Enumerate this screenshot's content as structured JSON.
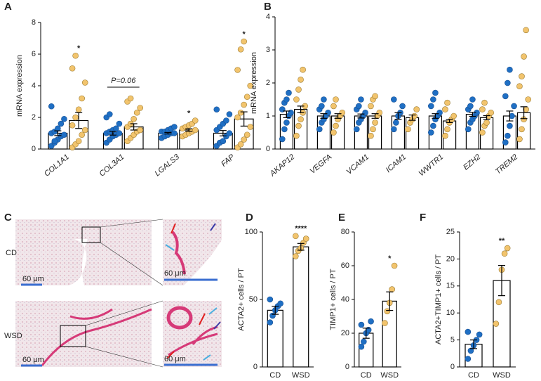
{
  "chart_data": [
    {
      "type": "bar",
      "panel": "A",
      "ylabel": "mRNA expression",
      "ylim": [
        0,
        8
      ],
      "yticks": [
        0,
        2,
        4,
        6,
        8
      ],
      "categories": [
        "COL1A1",
        "COL3A1",
        "LGALS3",
        "FAP"
      ],
      "series": [
        {
          "color": "#1f6fc4",
          "values": [
            1.0,
            1.0,
            1.0,
            1.0
          ],
          "errors": [
            0.15,
            0.12,
            0.05,
            0.17
          ],
          "points": [
            [
              0.2,
              0.4,
              0.6,
              0.8,
              0.9,
              1.0,
              1.1,
              1.3,
              1.6,
              1.9,
              2.7,
              0.5
            ],
            [
              0.4,
              0.6,
              0.8,
              0.9,
              1.0,
              1.0,
              1.1,
              1.2,
              1.3,
              1.6,
              2.0,
              2.2
            ],
            [
              0.7,
              0.8,
              0.9,
              1.0,
              1.0,
              1.1,
              1.1,
              1.2,
              1.3,
              1.4
            ],
            [
              0.2,
              0.4,
              0.5,
              0.8,
              1.0,
              1.2,
              1.4,
              1.6,
              1.8,
              2.2,
              2.5
            ]
          ]
        },
        {
          "color": "#f2c46d",
          "values": [
            1.8,
            1.4,
            1.2,
            1.9
          ],
          "errors": [
            0.5,
            0.2,
            0.08,
            0.45
          ],
          "points": [
            [
              0.1,
              0.3,
              0.5,
              0.9,
              1.2,
              1.5,
              2.0,
              2.5,
              3.2,
              4.2,
              5.1,
              5.9
            ],
            [
              0.5,
              0.7,
              0.9,
              1.1,
              1.2,
              1.4,
              1.6,
              1.9,
              2.3,
              2.6,
              3.0,
              3.2
            ],
            [
              0.8,
              0.9,
              1.0,
              1.1,
              1.2,
              1.3,
              1.4,
              1.5,
              1.6,
              1.8
            ],
            [
              0.1,
              0.3,
              0.6,
              0.9,
              1.4,
              2.0,
              2.3,
              2.8,
              3.3,
              4.0,
              5.0,
              6.3,
              6.8
            ]
          ]
        }
      ],
      "significance": [
        "*",
        "P=0.06",
        "*",
        "*"
      ]
    },
    {
      "type": "bar",
      "panel": "B",
      "ylabel": "mRNA expression",
      "ylim": [
        0,
        4
      ],
      "yticks": [
        0,
        1,
        2,
        3,
        4
      ],
      "categories": [
        "AKAP12",
        "VEGFA",
        "VCAM1",
        "ICAM1",
        "WWTR1",
        "EZH2",
        "TREM2"
      ],
      "series": [
        {
          "color": "#1f6fc4",
          "values": [
            1.05,
            1.0,
            1.0,
            1.0,
            1.0,
            1.05,
            1.0
          ],
          "errors": [
            0.1,
            0.07,
            0.06,
            0.1,
            0.07,
            0.06,
            0.15
          ],
          "points": [
            [
              0.3,
              0.6,
              0.8,
              1.0,
              1.1,
              1.2,
              1.4,
              1.5,
              1.7
            ],
            [
              0.6,
              0.8,
              0.9,
              1.0,
              1.1,
              1.2,
              1.3,
              1.5
            ],
            [
              0.6,
              0.8,
              0.9,
              1.0,
              1.1,
              1.2,
              1.3,
              1.5
            ],
            [
              0.6,
              0.8,
              1.0,
              1.1,
              1.3,
              1.5
            ],
            [
              0.5,
              0.7,
              0.9,
              1.0,
              1.1,
              1.3,
              1.5,
              1.7
            ],
            [
              0.6,
              0.8,
              0.9,
              1.0,
              1.1,
              1.2,
              1.3,
              1.5
            ],
            [
              0.2,
              0.4,
              0.7,
              1.0,
              1.3,
              1.6,
              2.0,
              2.4
            ]
          ]
        },
        {
          "color": "#f2c46d",
          "values": [
            1.2,
            1.0,
            1.0,
            0.95,
            0.85,
            0.95,
            1.1
          ],
          "errors": [
            0.1,
            0.07,
            0.07,
            0.08,
            0.05,
            0.06,
            0.18
          ],
          "points": [
            [
              0.4,
              0.7,
              0.9,
              1.1,
              1.3,
              1.5,
              1.8,
              2.1,
              2.4
            ],
            [
              0.5,
              0.7,
              0.9,
              1.0,
              1.1,
              1.3,
              1.5
            ],
            [
              0.4,
              0.6,
              0.8,
              1.0,
              1.1,
              1.3,
              1.5,
              1.6
            ],
            [
              0.6,
              0.8,
              0.9,
              1.0,
              1.2
            ],
            [
              0.4,
              0.6,
              0.8,
              0.9,
              1.0,
              1.2,
              1.4
            ],
            [
              0.5,
              0.7,
              0.8,
              1.0,
              1.1,
              1.2,
              1.4
            ],
            [
              0.3,
              0.6,
              0.9,
              1.2,
              1.5,
              1.9,
              2.2,
              2.8,
              3.6
            ]
          ]
        }
      ]
    },
    {
      "type": "bar",
      "panel": "D",
      "ylabel": "ACTA2+ cells / PT",
      "ylim": [
        0,
        100
      ],
      "yticks": [
        0,
        50,
        100
      ],
      "categories": [
        "CD",
        "WSD"
      ],
      "values": [
        42,
        89
      ],
      "errors": [
        3,
        2.5
      ],
      "colors": [
        "#1f6fc4",
        "#f2c46d"
      ],
      "points": [
        [
          33,
          38,
          42,
          45,
          47,
          50
        ],
        [
          82,
          86,
          88,
          92,
          95,
          97
        ]
      ],
      "significance": [
        null,
        "****"
      ]
    },
    {
      "type": "bar",
      "panel": "E",
      "ylabel": "TIMP1+ cells / PT",
      "ylim": [
        0,
        80
      ],
      "yticks": [
        0,
        20,
        40,
        60,
        80
      ],
      "categories": [
        "CD",
        "WSD"
      ],
      "values": [
        20,
        39
      ],
      "errors": [
        3,
        5.5
      ],
      "colors": [
        "#1f6fc4",
        "#f2c46d"
      ],
      "points": [
        [
          12,
          15,
          20,
          22,
          27,
          25
        ],
        [
          26,
          33,
          38,
          46,
          60
        ]
      ],
      "significance": [
        null,
        "*"
      ]
    },
    {
      "type": "bar",
      "panel": "F",
      "ylabel": "ACTA2+TIMP1+ cells / PT",
      "ylim": [
        0,
        25
      ],
      "yticks": [
        0,
        5,
        10,
        15,
        20,
        25
      ],
      "categories": [
        "CD",
        "WSD"
      ],
      "values": [
        4.2,
        16
      ],
      "errors": [
        0.8,
        2.8
      ],
      "colors": [
        "#1f6fc4",
        "#f2c46d"
      ],
      "points": [
        [
          1.5,
          3,
          4,
          5,
          6,
          6.5
        ],
        [
          8,
          12,
          18,
          21,
          22
        ]
      ],
      "significance": [
        null,
        "**"
      ]
    }
  ],
  "panel_c": {
    "label": "C",
    "rows": [
      "CD",
      "WSD"
    ],
    "scale_bar": "60 μm"
  }
}
